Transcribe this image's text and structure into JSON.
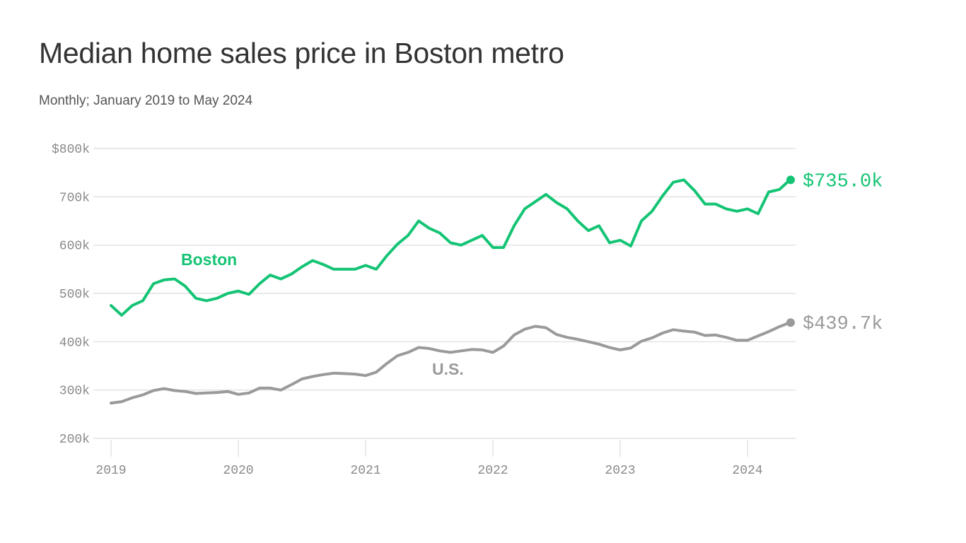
{
  "header": {
    "title": "Median home sales price in Boston metro",
    "subtitle": "Monthly; January 2019 to May 2024"
  },
  "colors": {
    "boston": "#14c474",
    "us": "#9a9a9a",
    "grid": "#dcdcdc",
    "axis_text": "#8a8a8a"
  },
  "chart_data": {
    "type": "line",
    "title": "Median home sales price in Boston metro",
    "subtitle": "Monthly; January 2019 to May 2024",
    "x_start": "2019-01",
    "x_end": "2024-05",
    "y_ticks": [
      200000,
      300000,
      400000,
      500000,
      600000,
      700000,
      800000
    ],
    "y_tick_labels": [
      "200k",
      "300k",
      "400k",
      "500k",
      "600k",
      "700k",
      "$800k"
    ],
    "ylim": [
      200000,
      800000
    ],
    "x_ticks": [
      "2019",
      "2020",
      "2021",
      "2022",
      "2023",
      "2024"
    ],
    "grid": true,
    "series": [
      {
        "name": "Boston",
        "end_label": "$735.0k",
        "values": [
          475000,
          455000,
          475000,
          485000,
          520000,
          528000,
          530000,
          515000,
          490000,
          485000,
          490000,
          500000,
          505000,
          498000,
          520000,
          538000,
          530000,
          540000,
          555000,
          568000,
          560000,
          550000,
          550000,
          550000,
          558000,
          550000,
          578000,
          602000,
          620000,
          650000,
          635000,
          625000,
          605000,
          600000,
          610000,
          620000,
          595000,
          595000,
          640000,
          675000,
          690000,
          705000,
          688000,
          675000,
          650000,
          630000,
          640000,
          605000,
          610000,
          598000,
          650000,
          670000,
          702000,
          730000,
          735000,
          713000,
          685000,
          685000,
          675000,
          670000,
          675000,
          665000,
          710000,
          715000,
          735000
        ]
      },
      {
        "name": "U.S.",
        "end_label": "$439.7k",
        "values": [
          273000,
          276000,
          284000,
          290000,
          299000,
          303000,
          299000,
          297000,
          293000,
          294000,
          295000,
          297000,
          291000,
          294000,
          304000,
          304000,
          300000,
          311000,
          323000,
          328000,
          332000,
          335000,
          334000,
          333000,
          330000,
          337000,
          355000,
          371000,
          378000,
          388000,
          386000,
          381000,
          378000,
          381000,
          384000,
          383000,
          378000,
          391000,
          414000,
          426000,
          432000,
          429000,
          415000,
          409000,
          405000,
          400000,
          395000,
          388000,
          383000,
          387000,
          401000,
          408000,
          418000,
          425000,
          422000,
          420000,
          413000,
          414000,
          409000,
          403000,
          403000,
          412000,
          421000,
          431000,
          439700
        ]
      }
    ]
  }
}
